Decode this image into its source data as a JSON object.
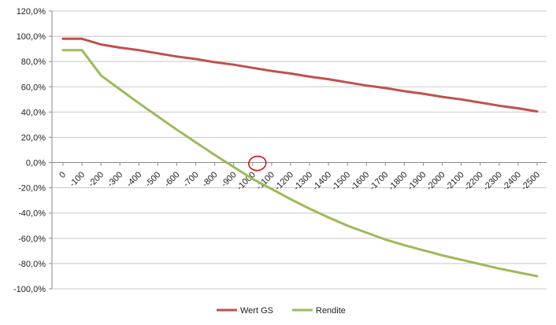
{
  "chart_data": {
    "type": "line",
    "title": "",
    "xlabel": "",
    "ylabel": "",
    "categories": [
      "0",
      "-100",
      "-200",
      "-300",
      "-400",
      "-500",
      "-600",
      "-700",
      "-800",
      "-900",
      "-1000",
      "-1100",
      "-1200",
      "-1300",
      "-1400",
      "-1500",
      "-1600",
      "-1700",
      "-1800",
      "-1900",
      "-2000",
      "-2100",
      "-2200",
      "-2300",
      "-2400",
      "-2500"
    ],
    "ylim": [
      -100,
      120
    ],
    "y_ticks": [
      "120,0%",
      "100,0%",
      "80,0%",
      "60,0%",
      "40,0%",
      "20,0%",
      "0,0%",
      "-20,0%",
      "-40,0%",
      "-60,0%",
      "-80,0%",
      "-100,0%"
    ],
    "y_tick_values": [
      120,
      100,
      80,
      60,
      40,
      20,
      0,
      -20,
      -40,
      -60,
      -80,
      -100
    ],
    "grid": true,
    "legend_position": "bottom",
    "series": [
      {
        "name": "Wert GS",
        "color": "#C0504D",
        "values": [
          98,
          98,
          93.5,
          91,
          89,
          86.5,
          84,
          82,
          79.5,
          77.5,
          75,
          72.5,
          70.5,
          68,
          66,
          63.5,
          61,
          59,
          56.5,
          54.5,
          52,
          50,
          47.5,
          45,
          43,
          40.5
        ]
      },
      {
        "name": "Rendite",
        "color": "#9BBB59",
        "values": [
          89,
          89,
          69,
          58,
          47,
          36.5,
          26,
          16,
          6,
          -3.5,
          -13,
          -21,
          -29,
          -36.5,
          -43.5,
          -50,
          -55.5,
          -61,
          -65.5,
          -69.5,
          -73.5,
          -77,
          -80.5,
          -84,
          -87,
          -90
        ]
      }
    ],
    "annotation": {
      "type": "circle",
      "color": "#E00000",
      "at_category": "-1000",
      "at_value": 0
    }
  }
}
